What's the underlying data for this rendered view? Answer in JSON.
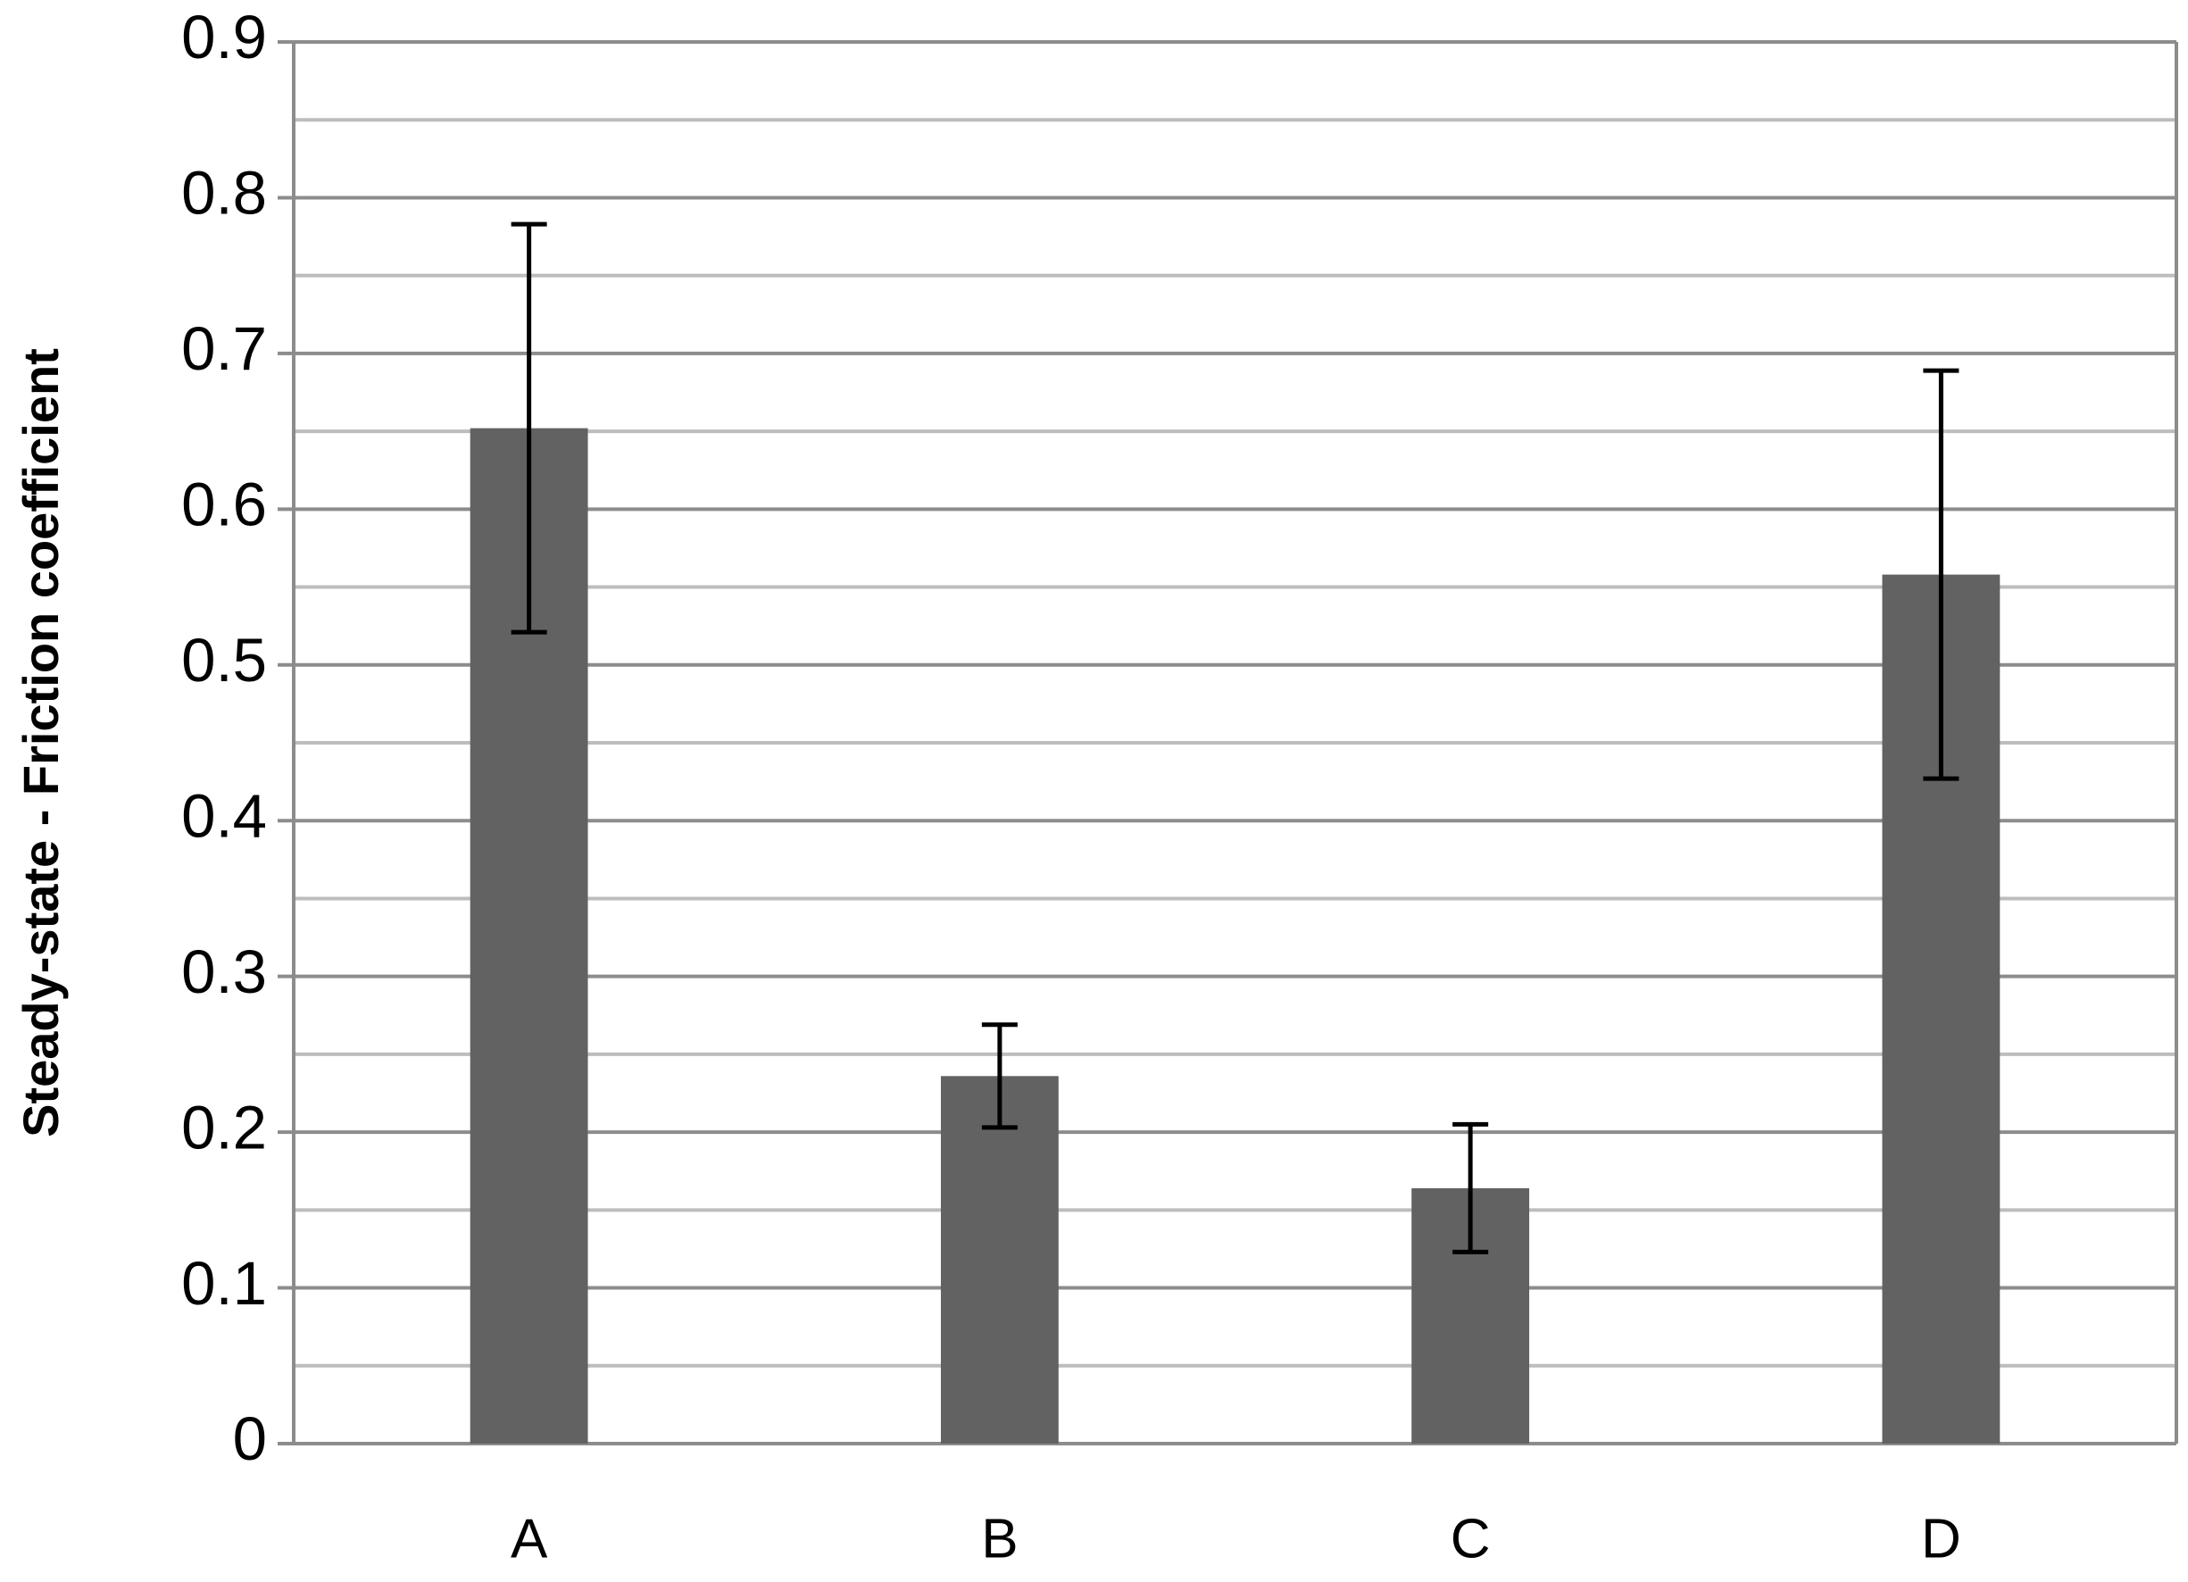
{
  "chart_data": {
    "type": "bar",
    "y_axis_label": "Steady-state - Friction coefficient",
    "categories": [
      "A",
      "B",
      "C",
      "D"
    ],
    "values": [
      0.652,
      0.236,
      0.164,
      0.558
    ],
    "errors": [
      0.131,
      0.033,
      0.041,
      0.131
    ],
    "color": "#626262",
    "ylim": [
      0,
      0.9
    ],
    "yticks": [
      0,
      0.1,
      0.2,
      0.3,
      0.4,
      0.5,
      0.6,
      0.7,
      0.8,
      0.9
    ],
    "minor_yticks": [
      0.05,
      0.15,
      0.25,
      0.35,
      0.45,
      0.55,
      0.65,
      0.75,
      0.85
    ],
    "grid": true
  }
}
